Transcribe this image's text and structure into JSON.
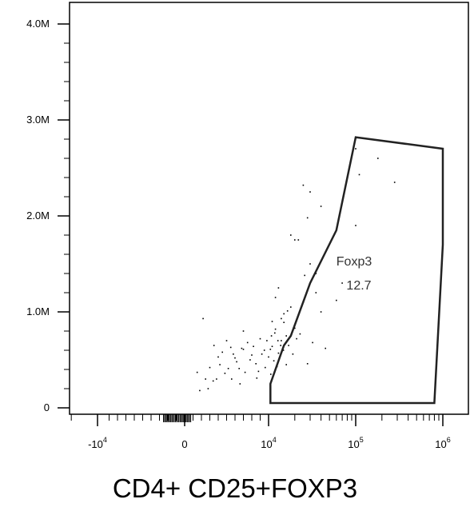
{
  "chart_data": {
    "type": "scatter",
    "title": "CD4+ CD25+FOXP3",
    "xlabel": "",
    "ylabel": "",
    "x_scale": "biexponential",
    "y_ticks": [
      {
        "value": 0,
        "label": "0"
      },
      {
        "value": 1000000,
        "label": "1.0M"
      },
      {
        "value": 2000000,
        "label": "2.0M"
      },
      {
        "value": 3000000,
        "label": "3.0M"
      },
      {
        "value": 4000000,
        "label": "4.0M"
      }
    ],
    "x_ticks": [
      {
        "value": -10000,
        "base": "-10",
        "exp": "4"
      },
      {
        "value": 0,
        "base": "0",
        "exp": ""
      },
      {
        "value": 10000,
        "base": "10",
        "exp": "4"
      },
      {
        "value": 100000,
        "base": "10",
        "exp": "5"
      },
      {
        "value": 1000000,
        "base": "10",
        "exp": "6"
      }
    ],
    "gate": {
      "name": "Foxp3",
      "percent": "12.7",
      "vertices": [
        [
          10500,
          50000
        ],
        [
          10500,
          250000
        ],
        [
          15000,
          650000
        ],
        [
          18000,
          750000
        ],
        [
          30000,
          1300000
        ],
        [
          60000,
          1850000
        ],
        [
          100000,
          2820000
        ],
        [
          1000000,
          2700000
        ],
        [
          1000000,
          1700000
        ],
        [
          800000,
          50000
        ]
      ]
    },
    "points": [
      [
        2200,
        930000
      ],
      [
        1800,
        180000
      ],
      [
        1500,
        370000
      ],
      [
        2500,
        300000
      ],
      [
        3000,
        420000
      ],
      [
        3500,
        650000
      ],
      [
        4000,
        530000
      ],
      [
        3800,
        300000
      ],
      [
        4500,
        580000
      ],
      [
        5000,
        700000
      ],
      [
        5500,
        630000
      ],
      [
        6000,
        520000
      ],
      [
        6500,
        410000
      ],
      [
        7000,
        610000
      ],
      [
        7500,
        680000
      ],
      [
        8000,
        550000
      ],
      [
        8500,
        460000
      ],
      [
        9000,
        720000
      ],
      [
        9500,
        600000
      ],
      [
        10000,
        530000
      ],
      [
        11000,
        640000
      ],
      [
        12000,
        820000
      ],
      [
        13000,
        570000
      ],
      [
        14000,
        700000
      ],
      [
        15000,
        890000
      ],
      [
        16000,
        750000
      ],
      [
        17000,
        650000
      ],
      [
        18000,
        1050000
      ],
      [
        12000,
        1150000
      ],
      [
        13000,
        1250000
      ],
      [
        15000,
        980000
      ],
      [
        20000,
        830000
      ],
      [
        25000,
        1100000
      ],
      [
        28000,
        460000
      ],
      [
        30000,
        1500000
      ],
      [
        32000,
        680000
      ],
      [
        35000,
        1200000
      ],
      [
        40000,
        1000000
      ],
      [
        45000,
        620000
      ],
      [
        25000,
        2320000
      ],
      [
        30000,
        2250000
      ],
      [
        40000,
        2100000
      ],
      [
        18000,
        1800000
      ],
      [
        20000,
        1750000
      ],
      [
        22000,
        1750000
      ],
      [
        28000,
        1980000
      ],
      [
        35000,
        1400000
      ],
      [
        60000,
        1120000
      ],
      [
        70000,
        1300000
      ],
      [
        100000,
        2700000
      ],
      [
        110000,
        2430000
      ],
      [
        180000,
        2600000
      ],
      [
        280000,
        2350000
      ],
      [
        100000,
        1900000
      ],
      [
        5200,
        410000
      ],
      [
        6200,
        480000
      ],
      [
        7200,
        370000
      ],
      [
        8200,
        640000
      ],
      [
        9200,
        560000
      ],
      [
        10500,
        610000
      ],
      [
        11500,
        490000
      ],
      [
        12500,
        430000
      ],
      [
        4200,
        450000
      ],
      [
        4800,
        360000
      ],
      [
        5800,
        560000
      ],
      [
        6800,
        620000
      ],
      [
        7800,
        500000
      ],
      [
        8800,
        380000
      ],
      [
        9800,
        700000
      ],
      [
        10800,
        750000
      ],
      [
        11800,
        780000
      ],
      [
        12800,
        700000
      ],
      [
        13800,
        650000
      ],
      [
        14800,
        600000
      ],
      [
        5600,
        300000
      ],
      [
        6600,
        250000
      ],
      [
        3400,
        280000
      ],
      [
        2800,
        200000
      ],
      [
        8600,
        310000
      ],
      [
        9600,
        420000
      ],
      [
        10600,
        350000
      ],
      [
        16000,
        450000
      ],
      [
        19000,
        560000
      ],
      [
        21000,
        720000
      ],
      [
        23000,
        770000
      ],
      [
        14000,
        930000
      ],
      [
        16500,
        1010000
      ],
      [
        11000,
        900000
      ],
      [
        7000,
        800000
      ],
      [
        26000,
        1380000
      ]
    ]
  }
}
